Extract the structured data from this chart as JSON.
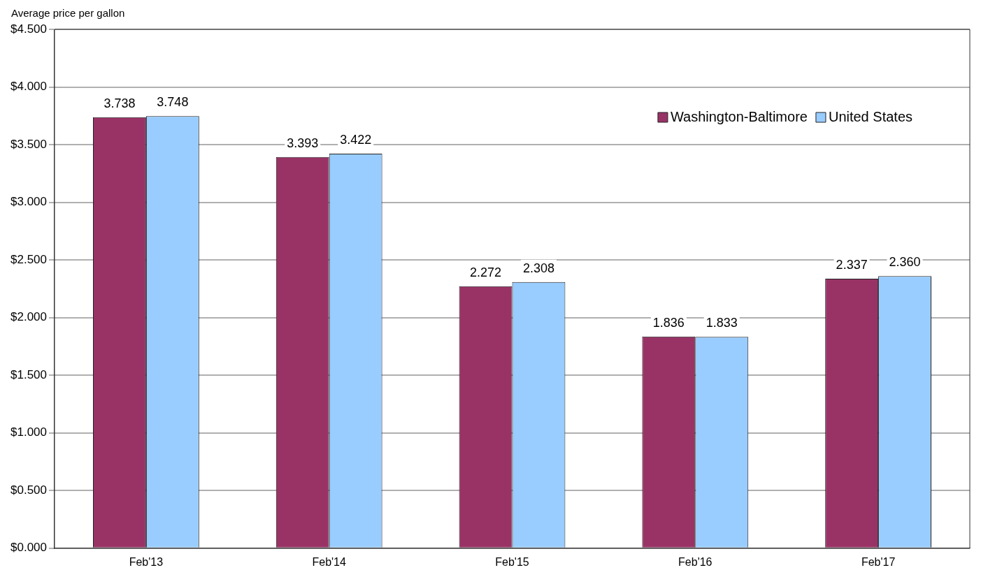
{
  "chart_data": {
    "type": "bar",
    "ylabel": "Average price per gallon",
    "categories": [
      "Feb'13",
      "Feb'14",
      "Feb'15",
      "Feb'16",
      "Feb'17"
    ],
    "series": [
      {
        "name": "Washington-Baltimore",
        "color": "#993366",
        "values": [
          3.738,
          3.393,
          2.272,
          1.836,
          2.337
        ],
        "value_labels": [
          "3.738",
          "3.393",
          "2.272",
          "1.836",
          "2.337"
        ]
      },
      {
        "name": "United States",
        "color": "#99ccff",
        "values": [
          3.748,
          3.422,
          2.308,
          1.833,
          2.36
        ],
        "value_labels": [
          "3.748",
          "3.422",
          "2.308",
          "1.833",
          "2.360"
        ]
      }
    ],
    "ylim": [
      0,
      4.5
    ],
    "yticks": [
      {
        "value": 0,
        "label": "$0.000"
      },
      {
        "value": 0.5,
        "label": "$0.500"
      },
      {
        "value": 1,
        "label": "$1.000"
      },
      {
        "value": 1.5,
        "label": "$1.500"
      },
      {
        "value": 2,
        "label": "$2.000"
      },
      {
        "value": 2.5,
        "label": "$2.500"
      },
      {
        "value": 3,
        "label": "$3.000"
      },
      {
        "value": 3.5,
        "label": "$3.500"
      },
      {
        "value": 4,
        "label": "$4.000"
      },
      {
        "value": 4.5,
        "label": "$4.500"
      }
    ],
    "grid": "y",
    "legend": "top right"
  }
}
